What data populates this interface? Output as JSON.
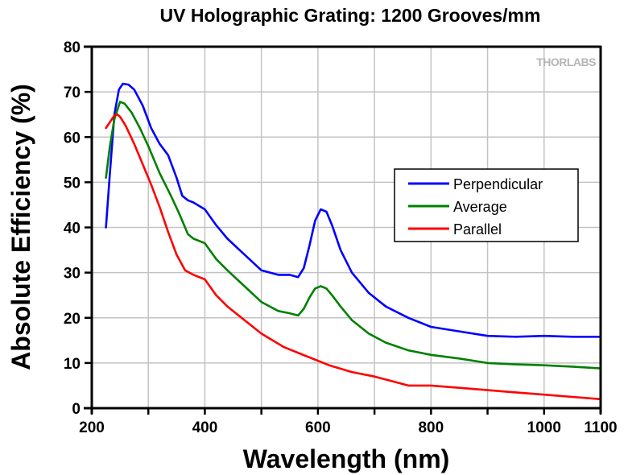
{
  "chart_data": {
    "type": "line",
    "title": "UV Holographic Grating: 1200 Grooves/mm",
    "xlabel": "Wavelength (nm)",
    "ylabel": "Absolute Efficiency (%)",
    "xlim": [
      200,
      1100
    ],
    "ylim": [
      0,
      80
    ],
    "xticks": [
      200,
      400,
      600,
      800,
      1000,
      1100
    ],
    "xtick_labels": [
      "200",
      "400",
      "600",
      "800",
      "1000",
      "1100"
    ],
    "x_minor_ticks": [
      300,
      500,
      700,
      900
    ],
    "yticks": [
      0,
      10,
      20,
      30,
      40,
      50,
      60,
      70,
      80
    ],
    "ytick_labels": [
      "0",
      "10",
      "20",
      "30",
      "40",
      "50",
      "60",
      "70",
      "80"
    ],
    "grid": true,
    "legend_position": "center-right",
    "watermark": "THORLABS",
    "series": [
      {
        "name": "Perpendicular",
        "color": "#0000ff",
        "x": [
          225,
          232,
          240,
          248,
          255,
          265,
          275,
          290,
          305,
          320,
          335,
          350,
          360,
          370,
          380,
          400,
          420,
          440,
          470,
          500,
          530,
          550,
          565,
          575,
          585,
          595,
          605,
          615,
          625,
          640,
          660,
          690,
          720,
          760,
          800,
          850,
          900,
          950,
          1000,
          1050,
          1100
        ],
        "y": [
          40,
          52,
          65,
          70.5,
          71.8,
          71.6,
          70.5,
          67,
          62,
          58.5,
          56,
          51,
          47,
          46,
          45.5,
          44,
          40.5,
          37.5,
          34,
          30.5,
          29.5,
          29.5,
          29,
          31,
          36,
          41.5,
          44,
          43.5,
          40.5,
          35,
          30,
          25.5,
          22.5,
          20,
          18,
          17,
          16,
          15.8,
          16,
          15.8,
          15.8
        ]
      },
      {
        "name": "Average",
        "color": "#008000",
        "x": [
          225,
          232,
          240,
          250,
          258,
          270,
          285,
          300,
          320,
          340,
          355,
          370,
          380,
          400,
          420,
          440,
          470,
          500,
          530,
          550,
          565,
          575,
          585,
          595,
          605,
          615,
          625,
          640,
          660,
          690,
          720,
          760,
          800,
          850,
          900,
          950,
          1000,
          1050,
          1100
        ],
        "y": [
          51,
          58,
          64,
          67.8,
          67.4,
          65.5,
          62,
          58,
          52,
          47,
          43,
          38.5,
          37.5,
          36.5,
          33,
          30.5,
          27,
          23.5,
          21.5,
          21,
          20.5,
          22,
          24.5,
          26.5,
          27,
          26.5,
          25,
          22.5,
          19.5,
          16.5,
          14.5,
          12.8,
          11.8,
          11,
          10,
          9.7,
          9.5,
          9.2,
          8.8
        ]
      },
      {
        "name": "Parallel",
        "color": "#ff0000",
        "x": [
          225,
          233,
          240,
          245,
          250,
          260,
          275,
          290,
          305,
          320,
          335,
          350,
          365,
          380,
          400,
          420,
          440,
          470,
          500,
          540,
          580,
          620,
          660,
          700,
          730,
          760,
          800,
          850,
          900,
          950,
          1000,
          1050,
          1100
        ],
        "y": [
          62,
          63.5,
          64.8,
          65,
          64.5,
          62.5,
          58.5,
          54,
          49.5,
          44.5,
          39,
          34,
          30.5,
          29.5,
          28.5,
          25,
          22.5,
          19.5,
          16.5,
          13.5,
          11.5,
          9.5,
          8,
          7,
          6,
          5,
          5,
          4.5,
          4,
          3.5,
          3,
          2.5,
          2
        ]
      }
    ]
  }
}
